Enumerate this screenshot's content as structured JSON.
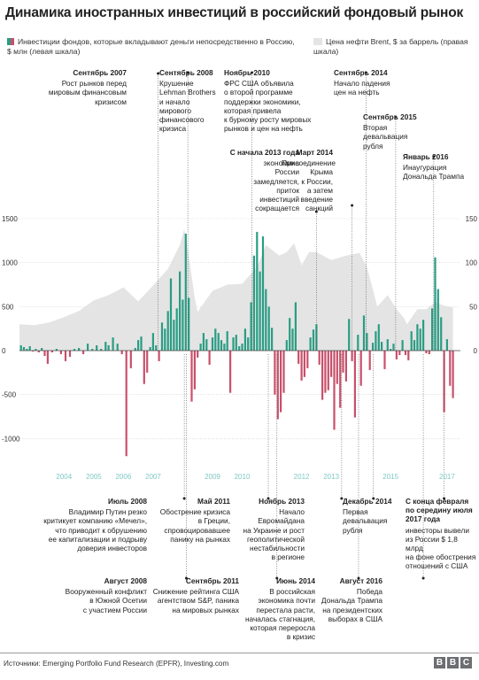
{
  "title": "Динамика иностранных инвестиций в российский фондовый рынок",
  "legend": {
    "flows": "Инвестиции фондов, которые вкладывают деньги непосредственно в Россию, $ млн (левая шкала)",
    "oil": "Цена нефти Brent, $ за баррель (правая шкала)"
  },
  "source": "Источники: Emerging Portfolio Fund Research (EPFR), Investing.com",
  "brand": [
    "B",
    "B",
    "C"
  ],
  "colors": {
    "inflow": "#2a9d84",
    "outflow": "#c8506a",
    "oil": "#e4e4e4",
    "year_label": "#7ec9c4",
    "leader": "#444444"
  },
  "chart_data": {
    "type": "bar",
    "left_axis": {
      "ticks": [
        -1000,
        -500,
        0,
        500,
        1000,
        1500
      ],
      "tick_labels": [
        "-1000",
        "-500",
        "0",
        "500",
        "1000",
        "1500"
      ],
      "range": [
        -1300,
        1500
      ]
    },
    "right_axis": {
      "ticks": [
        0,
        50,
        100,
        150
      ],
      "tick_labels": [
        "0",
        "50",
        "100",
        "150"
      ],
      "range": [
        -130,
        150
      ]
    },
    "x_range": [
      2003.0,
      2017.85
    ],
    "years": [
      {
        "label": "2004",
        "x": 2004.5
      },
      {
        "label": "2005",
        "x": 2005.5
      },
      {
        "label": "2006",
        "x": 2006.5
      },
      {
        "label": "2007",
        "x": 2007.5
      },
      {
        "label": "2009",
        "x": 2009.5
      },
      {
        "label": "2010",
        "x": 2010.5
      },
      {
        "label": "2012",
        "x": 2012.5
      },
      {
        "label": "2013",
        "x": 2013.5
      },
      {
        "label": "2015",
        "x": 2015.5
      },
      {
        "label": "2017",
        "x": 2017.4
      }
    ],
    "oil_price": [
      [
        2003.0,
        30
      ],
      [
        2003.5,
        29
      ],
      [
        2004.0,
        32
      ],
      [
        2004.5,
        38
      ],
      [
        2005.0,
        45
      ],
      [
        2005.5,
        57
      ],
      [
        2006.0,
        63
      ],
      [
        2006.5,
        72
      ],
      [
        2007.0,
        56
      ],
      [
        2007.5,
        74
      ],
      [
        2008.0,
        93
      ],
      [
        2008.4,
        120
      ],
      [
        2008.55,
        138
      ],
      [
        2008.7,
        108
      ],
      [
        2008.9,
        60
      ],
      [
        2009.0,
        44
      ],
      [
        2009.5,
        68
      ],
      [
        2010.0,
        75
      ],
      [
        2010.5,
        76
      ],
      [
        2011.0,
        95
      ],
      [
        2011.3,
        120
      ],
      [
        2011.75,
        108
      ],
      [
        2012.0,
        112
      ],
      [
        2012.25,
        122
      ],
      [
        2012.5,
        97
      ],
      [
        2012.75,
        112
      ],
      [
        2013.0,
        112
      ],
      [
        2013.5,
        103
      ],
      [
        2014.0,
        108
      ],
      [
        2014.45,
        111
      ],
      [
        2014.7,
        95
      ],
      [
        2014.9,
        70
      ],
      [
        2015.05,
        50
      ],
      [
        2015.4,
        63
      ],
      [
        2015.7,
        47
      ],
      [
        2015.95,
        37
      ],
      [
        2016.05,
        30
      ],
      [
        2016.4,
        47
      ],
      [
        2016.7,
        47
      ],
      [
        2017.0,
        55
      ],
      [
        2017.3,
        51
      ],
      [
        2017.6,
        49
      ]
    ],
    "flows": [
      [
        2003.05,
        60
      ],
      [
        2003.15,
        40
      ],
      [
        2003.25,
        20
      ],
      [
        2003.35,
        50
      ],
      [
        2003.45,
        -10
      ],
      [
        2003.55,
        20
      ],
      [
        2003.65,
        -20
      ],
      [
        2003.75,
        30
      ],
      [
        2003.85,
        -60
      ],
      [
        2003.95,
        -150
      ],
      [
        2004.1,
        -20
      ],
      [
        2004.25,
        20
      ],
      [
        2004.4,
        -40
      ],
      [
        2004.55,
        -120
      ],
      [
        2004.7,
        -70
      ],
      [
        2004.85,
        20
      ],
      [
        2005.0,
        30
      ],
      [
        2005.15,
        -40
      ],
      [
        2005.3,
        80
      ],
      [
        2005.45,
        20
      ],
      [
        2005.6,
        60
      ],
      [
        2005.75,
        20
      ],
      [
        2005.9,
        100
      ],
      [
        2006.0,
        60
      ],
      [
        2006.15,
        150
      ],
      [
        2006.3,
        80
      ],
      [
        2006.45,
        -40
      ],
      [
        2006.6,
        -1200
      ],
      [
        2006.75,
        -200
      ],
      [
        2006.9,
        30
      ],
      [
        2007.0,
        120
      ],
      [
        2007.1,
        160
      ],
      [
        2007.2,
        -380
      ],
      [
        2007.3,
        -250
      ],
      [
        2007.4,
        40
      ],
      [
        2007.5,
        200
      ],
      [
        2007.6,
        60
      ],
      [
        2007.7,
        -120
      ],
      [
        2007.8,
        320
      ],
      [
        2007.9,
        250
      ],
      [
        2008.0,
        450
      ],
      [
        2008.1,
        820
      ],
      [
        2008.2,
        350
      ],
      [
        2008.3,
        480
      ],
      [
        2008.4,
        900
      ],
      [
        2008.5,
        580
      ],
      [
        2008.6,
        1330
      ],
      [
        2008.7,
        600
      ],
      [
        2008.8,
        -580
      ],
      [
        2008.9,
        -440
      ],
      [
        2009.0,
        -80
      ],
      [
        2009.1,
        80
      ],
      [
        2009.2,
        200
      ],
      [
        2009.3,
        130
      ],
      [
        2009.4,
        -160
      ],
      [
        2009.5,
        150
      ],
      [
        2009.6,
        250
      ],
      [
        2009.7,
        200
      ],
      [
        2009.8,
        120
      ],
      [
        2009.9,
        80
      ],
      [
        2010.0,
        220
      ],
      [
        2010.1,
        -480
      ],
      [
        2010.2,
        150
      ],
      [
        2010.3,
        180
      ],
      [
        2010.4,
        50
      ],
      [
        2010.5,
        80
      ],
      [
        2010.6,
        250
      ],
      [
        2010.7,
        150
      ],
      [
        2010.8,
        550
      ],
      [
        2010.9,
        1080
      ],
      [
        2011.0,
        1350
      ],
      [
        2011.1,
        900
      ],
      [
        2011.2,
        1300
      ],
      [
        2011.3,
        700
      ],
      [
        2011.4,
        500
      ],
      [
        2011.5,
        260
      ],
      [
        2011.6,
        -500
      ],
      [
        2011.7,
        -780
      ],
      [
        2011.8,
        -700
      ],
      [
        2011.9,
        -480
      ],
      [
        2012.0,
        120
      ],
      [
        2012.1,
        370
      ],
      [
        2012.2,
        250
      ],
      [
        2012.3,
        550
      ],
      [
        2012.4,
        -150
      ],
      [
        2012.5,
        -340
      ],
      [
        2012.6,
        -300
      ],
      [
        2012.7,
        -200
      ],
      [
        2012.8,
        150
      ],
      [
        2012.9,
        240
      ],
      [
        2013.0,
        300
      ],
      [
        2013.1,
        -160
      ],
      [
        2013.2,
        -560
      ],
      [
        2013.3,
        -480
      ],
      [
        2013.4,
        -450
      ],
      [
        2013.5,
        -300
      ],
      [
        2013.6,
        -900
      ],
      [
        2013.7,
        -380
      ],
      [
        2013.8,
        -650
      ],
      [
        2013.9,
        -250
      ],
      [
        2014.0,
        -350
      ],
      [
        2014.1,
        360
      ],
      [
        2014.2,
        -120
      ],
      [
        2014.3,
        -760
      ],
      [
        2014.4,
        180
      ],
      [
        2014.5,
        -400
      ],
      [
        2014.6,
        400
      ],
      [
        2014.7,
        200
      ],
      [
        2014.8,
        -220
      ],
      [
        2014.9,
        90
      ],
      [
        2015.0,
        220
      ],
      [
        2015.1,
        300
      ],
      [
        2015.2,
        100
      ],
      [
        2015.3,
        -210
      ],
      [
        2015.4,
        130
      ],
      [
        2015.5,
        20
      ],
      [
        2015.6,
        80
      ],
      [
        2015.7,
        -100
      ],
      [
        2015.8,
        -50
      ],
      [
        2015.9,
        120
      ],
      [
        2016.0,
        -50
      ],
      [
        2016.1,
        -110
      ],
      [
        2016.2,
        220
      ],
      [
        2016.3,
        120
      ],
      [
        2016.4,
        300
      ],
      [
        2016.5,
        250
      ],
      [
        2016.6,
        350
      ],
      [
        2016.7,
        -30
      ],
      [
        2016.8,
        -40
      ],
      [
        2016.9,
        480
      ],
      [
        2017.0,
        1060
      ],
      [
        2017.1,
        700
      ],
      [
        2017.2,
        380
      ],
      [
        2017.3,
        -700
      ],
      [
        2017.4,
        130
      ],
      [
        2017.5,
        -400
      ],
      [
        2017.6,
        -540
      ]
    ]
  },
  "annotations_top": [
    {
      "id": "sep-2007",
      "date": "Сентябрь 2007",
      "lines": [
        "Рост рынков перед",
        "мировым финансовым",
        "кризисом"
      ],
      "x": 2007.67
    },
    {
      "id": "sep-2008",
      "date": "Сентябрь 2008",
      "lines": [
        "Крушение",
        "Lehman Brothers",
        "и начало",
        "мирового",
        "финансового",
        "кризиса"
      ],
      "x": 2008.67
    },
    {
      "id": "nov-2010",
      "date": "Ноябрь 2010",
      "lines": [
        "ФРС США объявила",
        "о второй программе",
        "поддержки экономики,",
        "которая привела",
        "к бурному росту мировых",
        "рынков и цен на нефть"
      ],
      "x": 2010.83
    },
    {
      "id": "sep-2014",
      "date": "Сентябрь 2014",
      "lines": [
        "Начало падения",
        "цен на нефть"
      ],
      "x": 2014.67
    },
    {
      "id": "sep-2015",
      "date": "Сентябрь 2015",
      "lines": [
        "Вторая",
        "девальвация",
        "рубля"
      ],
      "x": 2015.67
    },
    {
      "id": "jan-2016",
      "date": "Январь 2016",
      "lines": [
        "Инаугурация",
        "Дональда Трампа"
      ],
      "x": 2016.95
    },
    {
      "id": "early-2013",
      "date": "С начала 2013 года",
      "lines": [
        "экономика",
        "России",
        "замедляется,",
        "приток",
        "инвестиций",
        "сокращается"
      ],
      "x": 2013.0
    },
    {
      "id": "mar-2014",
      "date": "Март 2014",
      "lines": [
        "Присоединение",
        "Крыма",
        "к России,",
        "а затем",
        "введение",
        "санкций"
      ],
      "x": 2014.2
    }
  ],
  "annotations_bottom": [
    {
      "id": "jul-2008",
      "date": "Июль 2008",
      "lines": [
        "Владимир Путин резко",
        "критикует компанию «Мечел»,",
        "что приводит к обрушению",
        "ее капитализации и подрыву",
        "доверия инвесторов"
      ],
      "x": 2008.55
    },
    {
      "id": "aug-2008",
      "date": "Август 2008",
      "lines": [
        "Вооруженный конфликт",
        "в Южной Осетии",
        "с участием России"
      ],
      "x": 2008.62
    },
    {
      "id": "may-2011",
      "date": "Май 2011",
      "lines": [
        "Обострение кризиса",
        "в Греции,",
        "спровоцировавшее",
        "панику на рынках"
      ],
      "x": 2011.38
    },
    {
      "id": "sep-2011",
      "date": "Сентябрь 2011",
      "lines": [
        "Снижение рейтинга США",
        "агентством S&P, паника",
        "на мировых рынках"
      ],
      "x": 2011.67
    },
    {
      "id": "nov-2013",
      "date": "Ноябрь 2013",
      "lines": [
        "Начало",
        "Евромайдана",
        "на Украине и рост",
        "геополитической",
        "нестабильности",
        "в регионе"
      ],
      "x": 2013.85
    },
    {
      "id": "jun-2014",
      "date": "Июнь 2014",
      "lines": [
        "В российская",
        "экономика почти",
        "перестала расти,",
        "началась стагнация,",
        "которая переросла",
        "в кризис"
      ],
      "x": 2014.42
    },
    {
      "id": "dec-2014",
      "date": "Декабрь 2014",
      "lines": [
        "Первая",
        "девальвация",
        "рубля"
      ],
      "x": 2014.92
    },
    {
      "id": "aug-2016",
      "date": "Август 2016",
      "lines": [
        "Победа",
        "Дональда Трампа",
        "на президентских",
        "выборах в США"
      ],
      "x": 2016.6
    },
    {
      "id": "feb-jul-2017",
      "date": "С конца февраля по середину июля 2017 года",
      "lines": [
        "инвесторы вывели",
        "из России $ 1,8 млрд",
        "на фоне обострения",
        "отношений с США"
      ],
      "x": 2017.3
    }
  ]
}
